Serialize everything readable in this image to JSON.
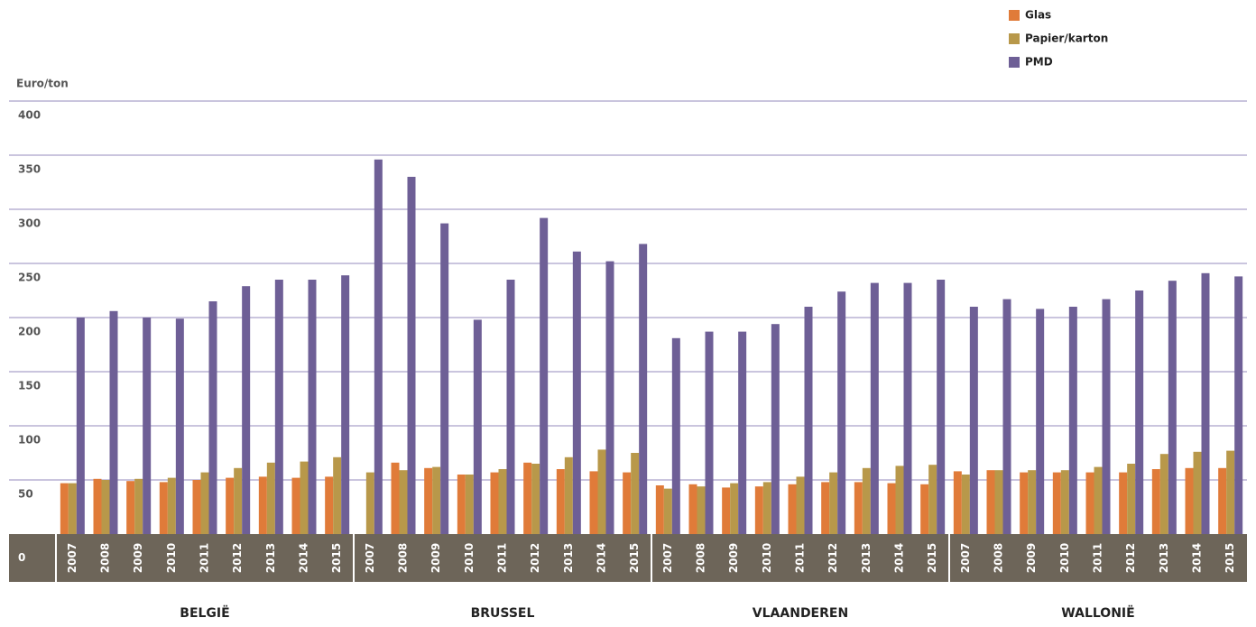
{
  "chart_data": {
    "type": "bar",
    "y_label": "Euro/ton",
    "groups": [
      {
        "name": "BELGIË",
        "categories": [
          "2007",
          "2008",
          "2009",
          "2010",
          "2011",
          "2012",
          "2013",
          "2014",
          "2015"
        ]
      },
      {
        "name": "BRUSSEL",
        "categories": [
          "2007",
          "2008",
          "2009",
          "2010",
          "2011",
          "2012",
          "2013",
          "2014",
          "2015"
        ]
      },
      {
        "name": "VLAANDEREN",
        "categories": [
          "2007",
          "2008",
          "2009",
          "2010",
          "2011",
          "2012",
          "2013",
          "2014",
          "2015"
        ]
      },
      {
        "name": "WALLONIË",
        "categories": [
          "2007",
          "2008",
          "2009",
          "2010",
          "2011",
          "2012",
          "2013",
          "2014",
          "2015"
        ]
      }
    ],
    "series": [
      {
        "name": "Glas",
        "color": "#e07b39",
        "values": [
          47,
          51,
          49,
          48,
          50,
          52,
          53,
          52,
          53,
          null,
          66,
          61,
          55,
          57,
          66,
          60,
          58,
          57,
          45,
          46,
          43,
          44,
          46,
          48,
          48,
          47,
          46,
          58,
          59,
          57,
          57,
          57,
          57,
          60,
          61,
          61
        ]
      },
      {
        "name": "Papier/karton",
        "color": "#b8984a",
        "values": [
          47,
          50,
          51,
          52,
          57,
          61,
          66,
          67,
          71,
          57,
          59,
          62,
          55,
          60,
          65,
          71,
          78,
          75,
          42,
          44,
          47,
          48,
          53,
          57,
          61,
          63,
          64,
          55,
          59,
          59,
          59,
          62,
          65,
          74,
          76,
          77
        ]
      },
      {
        "name": "PMD",
        "color": "#6e5f96",
        "values": [
          200,
          206,
          200,
          199,
          215,
          229,
          235,
          235,
          239,
          346,
          330,
          287,
          198,
          235,
          292,
          261,
          252,
          268,
          181,
          187,
          187,
          194,
          210,
          224,
          232,
          232,
          235,
          210,
          217,
          208,
          210,
          217,
          225,
          234,
          241,
          238
        ]
      }
    ],
    "ylim": [
      0,
      400
    ],
    "yticks": [
      0,
      50,
      100,
      150,
      200,
      250,
      300,
      350,
      400
    ],
    "grid": true,
    "legend": "top-right"
  }
}
